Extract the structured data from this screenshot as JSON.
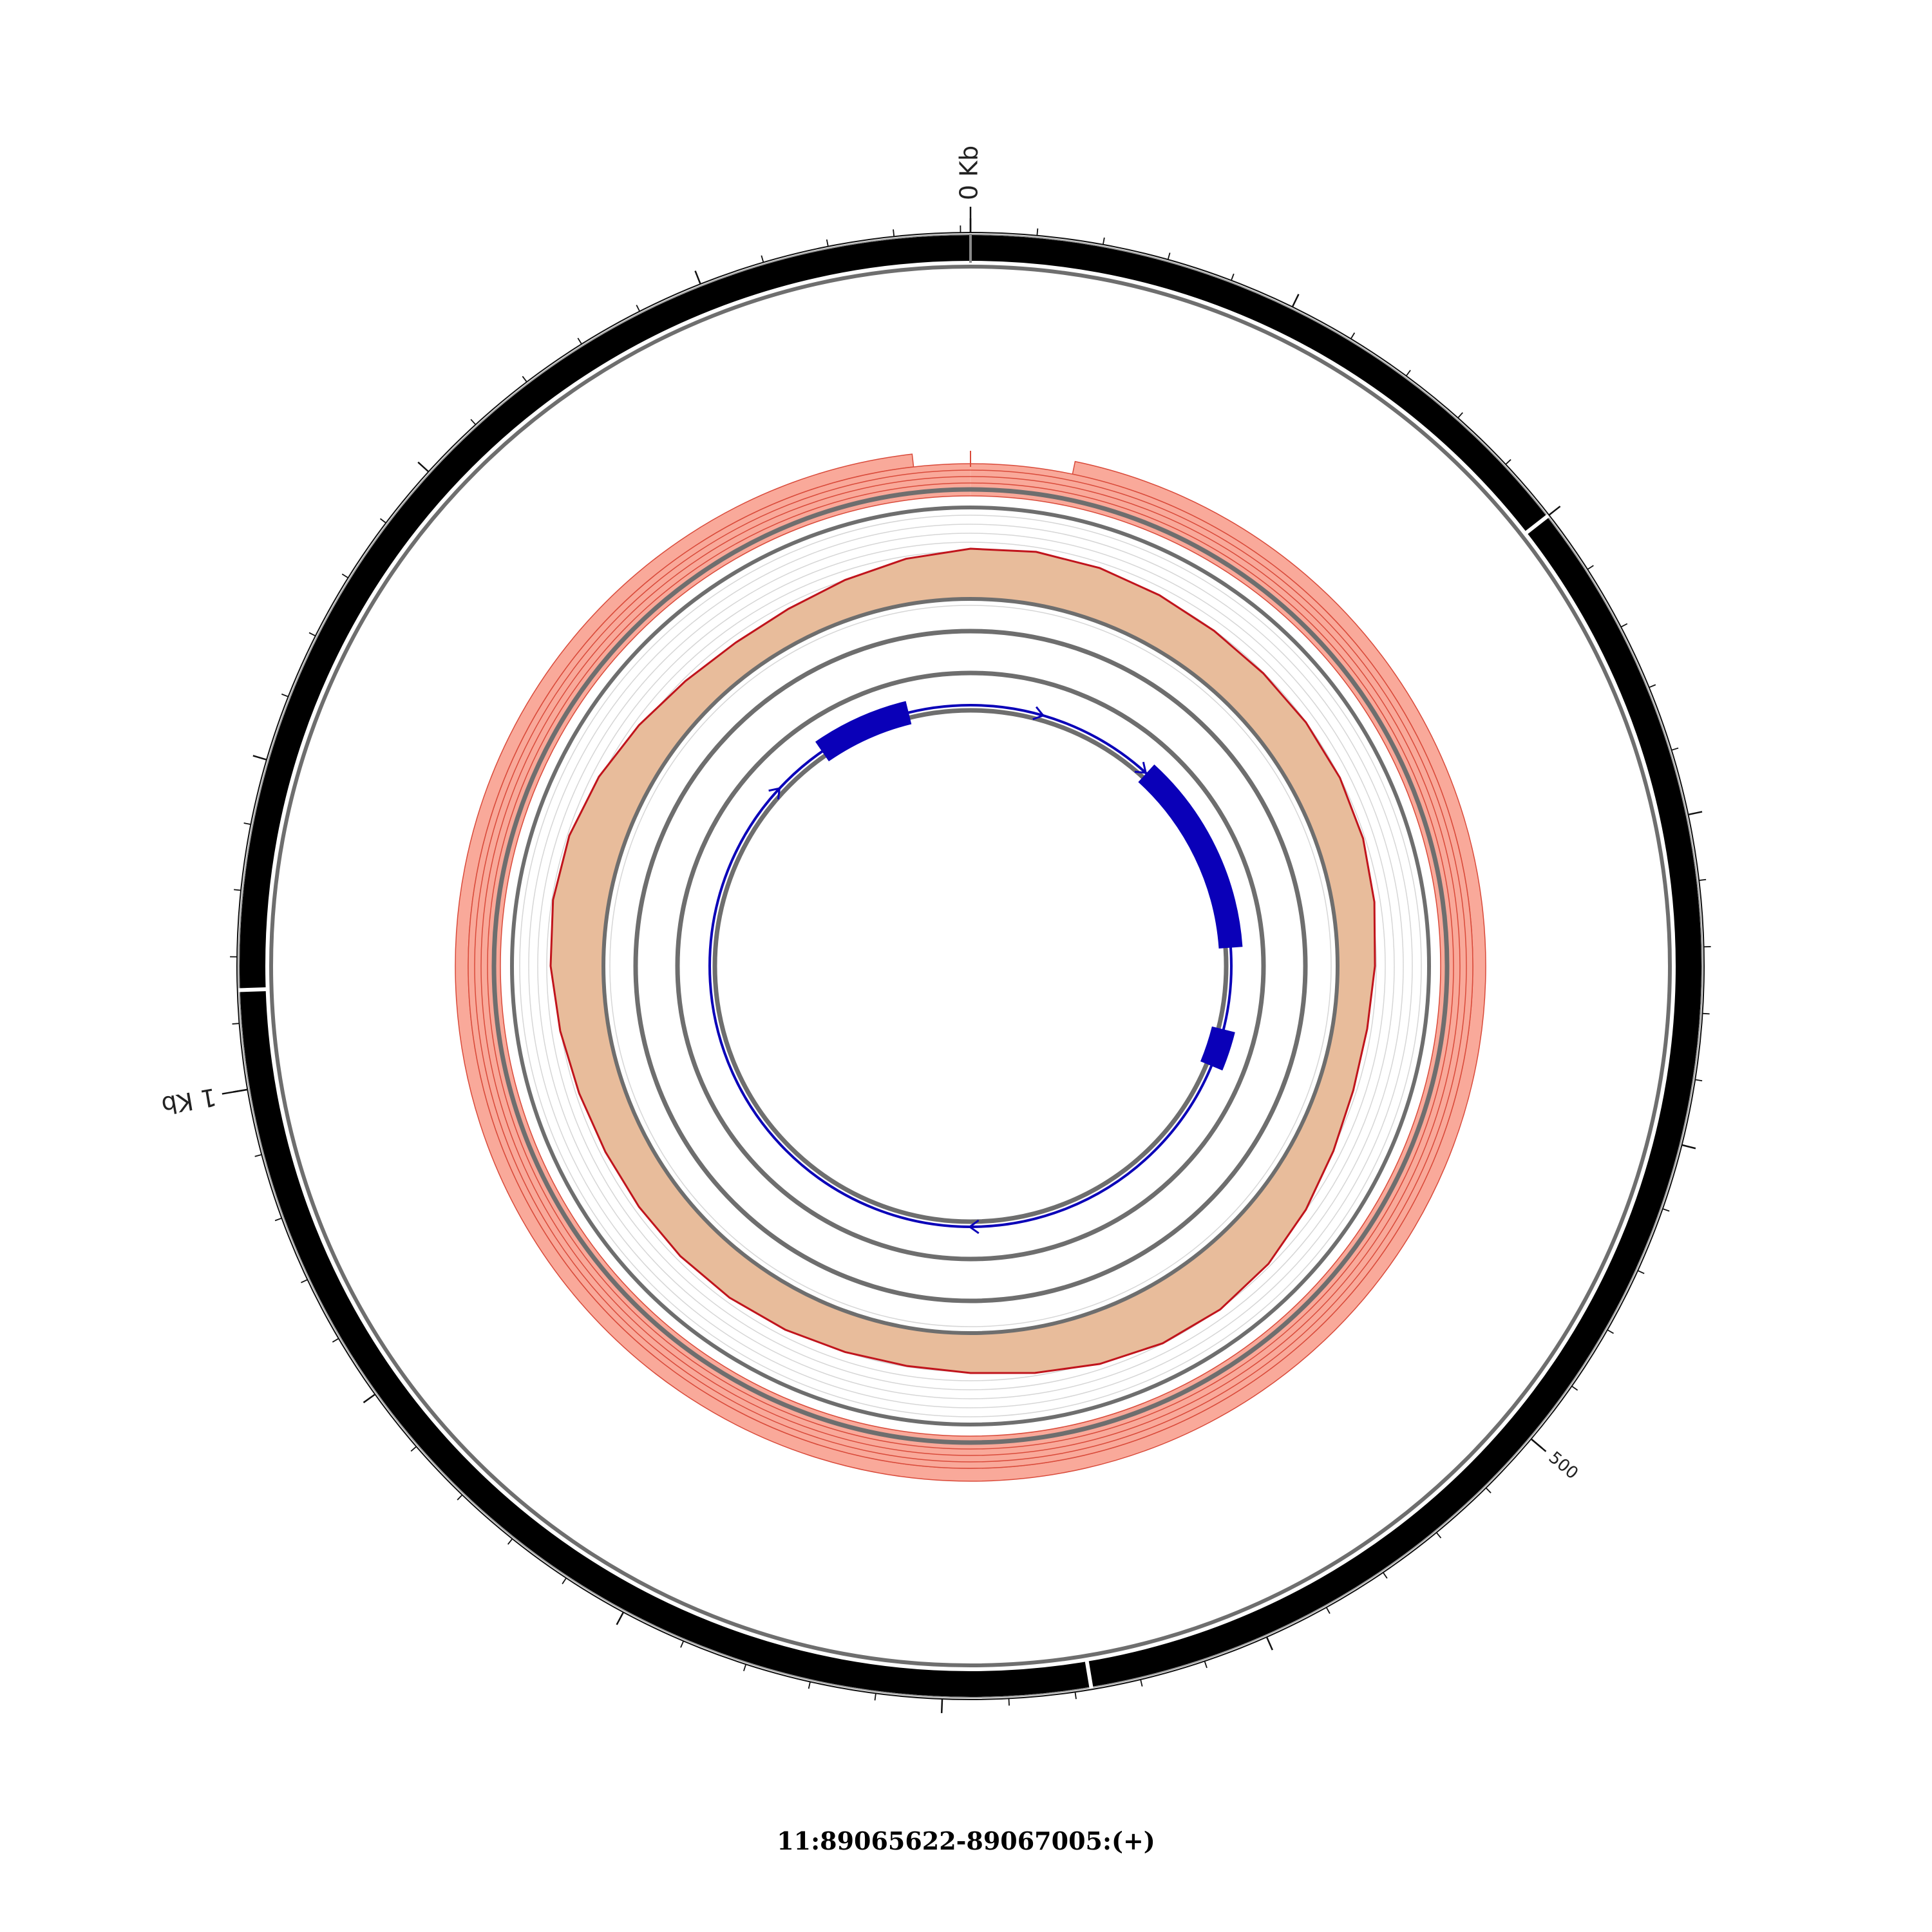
{
  "caption": "11:89065622-89067005:(+)",
  "scale": {
    "length_bp": 1383,
    "start_label": "0 Kb",
    "major_labels": [
      {
        "pos": 0,
        "label": "0 Kb",
        "cls": "big"
      },
      {
        "pos": 500,
        "label": "500",
        "cls": "small"
      },
      {
        "pos": 1000,
        "label": "1 Kb",
        "cls": "big"
      }
    ],
    "minor_tick_step": 20
  },
  "colors": {
    "ideogram": "#000000",
    "ring_line": "#6e6e6e",
    "salmon_fill": "#f9a99a",
    "salmon_line": "#d94a3a",
    "tan_fill": "#e8bc9b",
    "tan_line": "#c0141c",
    "gene": "#0a00b8",
    "grid": "#d6d6d6"
  },
  "ideogram_breaks_bp": [
    0,
    200,
    655,
    1030
  ],
  "gene": {
    "strand": "+",
    "exons": [
      {
        "start": 163,
        "end": 330
      },
      {
        "start": 400,
        "end": 432
      },
      {
        "start": 1250,
        "end": 1330
      }
    ]
  }
}
